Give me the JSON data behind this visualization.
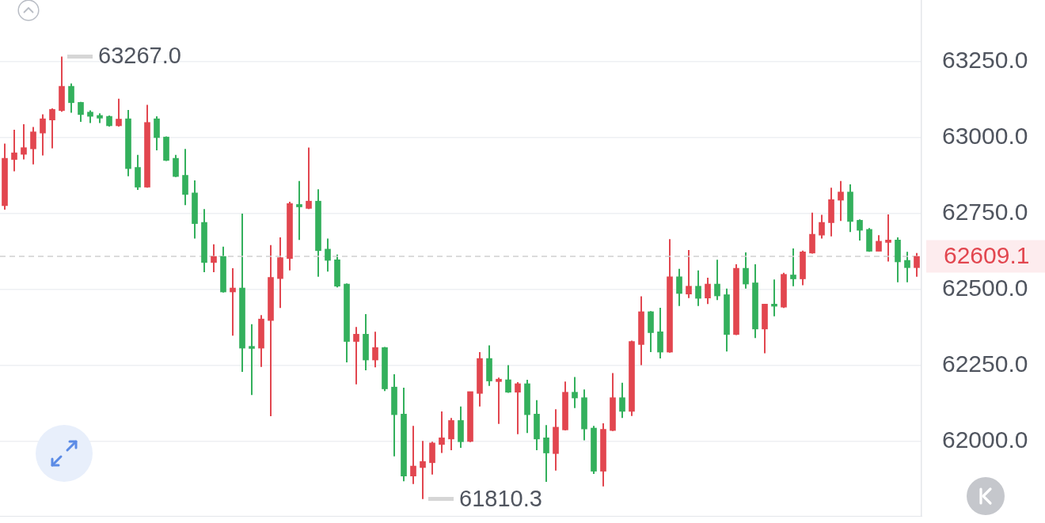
{
  "chart_data": {
    "type": "candlestick",
    "categories": [
      null,
      null,
      null,
      null,
      null,
      null,
      null,
      null,
      null,
      null,
      null,
      null,
      null,
      null,
      null,
      null,
      null,
      null,
      null,
      null,
      null,
      null,
      null,
      null,
      null,
      null,
      null,
      null,
      null,
      null,
      null,
      null,
      null,
      null,
      null,
      null,
      null,
      null,
      null,
      null,
      null,
      null,
      null,
      null,
      null,
      null,
      null,
      null,
      null,
      null,
      null,
      null,
      null,
      null,
      null,
      null,
      null,
      null,
      null,
      null,
      null,
      null,
      null,
      null,
      null,
      null,
      null,
      null,
      null,
      null,
      null,
      null,
      null,
      null,
      null,
      null,
      null,
      null,
      null,
      null,
      null,
      null,
      null,
      null,
      null,
      null,
      null,
      null,
      null,
      null,
      null,
      null,
      null,
      null,
      null,
      null,
      null
    ],
    "ohlc": [
      [
        62776,
        62980,
        62763,
        62932
      ],
      [
        62928,
        63026,
        62889,
        62950
      ],
      [
        62945,
        63044,
        62928,
        62967
      ],
      [
        62963,
        63035,
        62912,
        63019
      ],
      [
        63015,
        63077,
        62941,
        63062
      ],
      [
        63058,
        63096,
        62965,
        63093
      ],
      [
        63089,
        63267.0,
        63085,
        63169
      ],
      [
        63169,
        63178,
        63082,
        63115
      ],
      [
        63116,
        63118,
        63052,
        63076
      ],
      [
        63084,
        63090,
        63048,
        63070
      ],
      [
        63073,
        63080,
        63048,
        63064
      ],
      [
        63070,
        63073,
        63036,
        63039
      ],
      [
        63039,
        63128,
        63036,
        63061
      ],
      [
        63062,
        63091,
        62873,
        62898
      ],
      [
        62902,
        62943,
        62828,
        62837
      ],
      [
        62837,
        63108,
        62835,
        63050
      ],
      [
        63062,
        63070,
        62958,
        63000
      ],
      [
        63002,
        63004,
        62923,
        62925
      ],
      [
        62932,
        62943,
        62870,
        62872
      ],
      [
        62876,
        62963,
        62778,
        62813
      ],
      [
        62818,
        62859,
        62668,
        62717
      ],
      [
        62721,
        62765,
        62557,
        62589
      ],
      [
        62589,
        62649,
        62557,
        62609
      ],
      [
        62609,
        62641,
        62490,
        62492
      ],
      [
        62492,
        62570,
        62348,
        62505
      ],
      [
        62505,
        62750,
        62229,
        62307
      ],
      [
        62313,
        62386,
        62153,
        62306
      ],
      [
        62307,
        62416,
        62245,
        62403
      ],
      [
        62398,
        62646,
        62083,
        62540
      ],
      [
        62536,
        62672,
        62439,
        62605
      ],
      [
        62602,
        62789,
        62563,
        62783
      ],
      [
        62780,
        62857,
        62663,
        62772
      ],
      [
        62767,
        62967,
        62765,
        62791
      ],
      [
        62791,
        62830,
        62542,
        62628
      ],
      [
        62633,
        62668,
        62559,
        62596
      ],
      [
        62598,
        62615,
        62507,
        62511
      ],
      [
        62518,
        62520,
        62260,
        62329
      ],
      [
        62329,
        62377,
        62188,
        62353
      ],
      [
        62353,
        62419,
        62234,
        62268
      ],
      [
        62268,
        62361,
        62244,
        62309
      ],
      [
        62309,
        62311,
        62166,
        62173
      ],
      [
        62179,
        62221,
        61951,
        62088
      ],
      [
        62090,
        62177,
        61869,
        61886
      ],
      [
        61886,
        62051,
        61860,
        61919
      ],
      [
        61914,
        62002,
        61810.3,
        61934
      ],
      [
        61930,
        61999,
        61891,
        61995
      ],
      [
        61990,
        62099,
        61962,
        62012
      ],
      [
        62008,
        62077,
        61971,
        62069
      ],
      [
        62069,
        62115,
        61979,
        61999
      ],
      [
        62000,
        62164,
        61998,
        62164
      ],
      [
        62158,
        62294,
        62115,
        62273
      ],
      [
        62273,
        62316,
        62183,
        62199
      ],
      [
        62197,
        62210,
        62058,
        62205
      ],
      [
        62203,
        62251,
        62160,
        62162
      ],
      [
        62162,
        62195,
        62024,
        62190
      ],
      [
        62190,
        62203,
        62028,
        62088
      ],
      [
        62090,
        62136,
        61971,
        62008
      ],
      [
        62012,
        62054,
        61867,
        61962
      ],
      [
        61960,
        62106,
        61904,
        62047
      ],
      [
        62038,
        62197,
        62036,
        62162
      ],
      [
        62162,
        62212,
        62110,
        62143
      ],
      [
        62144,
        62171,
        62004,
        62041
      ],
      [
        62044,
        62051,
        61893,
        61902
      ],
      [
        61902,
        62060,
        61852,
        62040
      ],
      [
        62036,
        62225,
        62034,
        62144
      ],
      [
        62144,
        62193,
        62077,
        62099
      ],
      [
        62099,
        62332,
        62084,
        62329
      ],
      [
        62319,
        62478,
        62251,
        62427
      ],
      [
        62427,
        62429,
        62294,
        62358
      ],
      [
        62361,
        62440,
        62273,
        62294
      ],
      [
        62294,
        62666,
        62292,
        62542
      ],
      [
        62542,
        62568,
        62446,
        62487
      ],
      [
        62485,
        62630,
        62472,
        62511
      ],
      [
        62511,
        62563,
        62446,
        62471
      ],
      [
        62472,
        62539,
        62452,
        62518
      ],
      [
        62518,
        62598,
        62465,
        62479
      ],
      [
        62483,
        62503,
        62296,
        62352
      ],
      [
        62352,
        62583,
        62350,
        62570
      ],
      [
        62570,
        62622,
        62503,
        62518
      ],
      [
        62522,
        62583,
        62340,
        62370
      ],
      [
        62370,
        62452,
        62290,
        62452
      ],
      [
        62452,
        62533,
        62412,
        62445
      ],
      [
        62442,
        62555,
        62439,
        62550
      ],
      [
        62548,
        62635,
        62511,
        62535
      ],
      [
        62535,
        62628,
        62514,
        62624
      ],
      [
        62620,
        62753,
        62618,
        62682
      ],
      [
        62679,
        62746,
        62668,
        62721
      ],
      [
        62720,
        62835,
        62675,
        62796
      ],
      [
        62794,
        62857,
        62726,
        62821
      ],
      [
        62821,
        62846,
        62689,
        62724
      ],
      [
        62728,
        62731,
        62661,
        62695
      ],
      [
        62698,
        62702,
        62624,
        62626
      ],
      [
        62626,
        62679,
        62626,
        62659
      ],
      [
        62655,
        62747,
        62592,
        62663
      ],
      [
        62663,
        62672,
        62524,
        62591
      ],
      [
        62596,
        62624,
        62524,
        62572
      ],
      [
        62572,
        62620,
        62542,
        62609.1
      ]
    ],
    "colors": [
      "#e2464f",
      "#e2464f",
      "#e2464f",
      "#e2464f",
      "#e2464f",
      "#e2464f",
      "#e2464f",
      "#33b05c",
      "#33b05c",
      "#33b05c",
      "#33b05c",
      "#33b05c",
      "#e2464f",
      "#33b05c",
      "#33b05c",
      "#e2464f",
      "#33b05c",
      "#33b05c",
      "#33b05c",
      "#33b05c",
      "#33b05c",
      "#33b05c",
      "#e2464f",
      "#33b05c",
      "#e2464f",
      "#33b05c",
      "#33b05c",
      "#e2464f",
      "#e2464f",
      "#e2464f",
      "#e2464f",
      "#33b05c",
      "#e2464f",
      "#33b05c",
      "#33b05c",
      "#33b05c",
      "#33b05c",
      "#e2464f",
      "#33b05c",
      "#e2464f",
      "#33b05c",
      "#33b05c",
      "#33b05c",
      "#e2464f",
      "#e2464f",
      "#e2464f",
      "#e2464f",
      "#e2464f",
      "#33b05c",
      "#e2464f",
      "#e2464f",
      "#33b05c",
      "#e2464f",
      "#33b05c",
      "#e2464f",
      "#33b05c",
      "#33b05c",
      "#33b05c",
      "#e2464f",
      "#e2464f",
      "#33b05c",
      "#33b05c",
      "#33b05c",
      "#e2464f",
      "#e2464f",
      "#33b05c",
      "#e2464f",
      "#e2464f",
      "#33b05c",
      "#33b05c",
      "#e2464f",
      "#33b05c",
      "#e2464f",
      "#33b05c",
      "#e2464f",
      "#33b05c",
      "#33b05c",
      "#e2464f",
      "#33b05c",
      "#33b05c",
      "#e2464f",
      "#33b05c",
      "#e2464f",
      "#33b05c",
      "#e2464f",
      "#e2464f",
      "#e2464f",
      "#e2464f",
      "#e2464f",
      "#33b05c",
      "#33b05c",
      "#33b05c",
      "#e2464f",
      "#e2464f",
      "#33b05c",
      "#33b05c",
      "#e2464f"
    ],
    "ylim": [
      61755,
      63453
    ],
    "yticks": [
      {
        "value": 62000,
        "label": "62000.0"
      },
      {
        "value": 62250,
        "label": "62250.0"
      },
      {
        "value": 62500,
        "label": "62500.0"
      },
      {
        "value": 62750,
        "label": "62750.0"
      },
      {
        "value": 63000,
        "label": "63000.0"
      },
      {
        "value": 63250,
        "label": "63250.0"
      }
    ],
    "grid": "y",
    "tick_labels": "y",
    "ref_lines": [
      {
        "axis": "y",
        "value": 62609.1,
        "label": "62609.1",
        "color": "#cfcfcf",
        "line_style": "dashed"
      }
    ],
    "annotations": [
      "63267.0",
      "61810.3"
    ]
  }
}
